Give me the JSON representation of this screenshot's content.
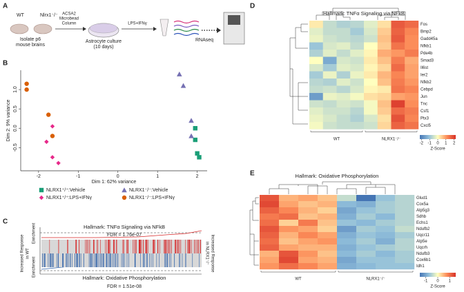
{
  "panel_labels": [
    "A",
    "B",
    "C",
    "D",
    "E"
  ],
  "schematic": {
    "wt": "WT",
    "ko": "Nlrx1⁻/⁻",
    "isolate": [
      "Isolate p6",
      "mouse brains"
    ],
    "column": [
      "ACSA2",
      "Microbead",
      "Column"
    ],
    "culture": [
      "Astrocyte culture",
      "(10 days)"
    ],
    "treatment": "LPS+IFNγ",
    "rnaseq": "RNAseq"
  },
  "scatter": {
    "type": "scatter",
    "xlabel": "Dim 1: 62% variance",
    "ylabel": "Dim 2: 9% variance",
    "xlim": [
      -2.45,
      2.25
    ],
    "ylim": [
      -1.1,
      1.5
    ],
    "xticks": [
      -2,
      -1,
      0,
      1,
      2
    ],
    "yticks": [
      -0.5,
      {
        "value": 0,
        "label": "0.0"
      },
      0.5,
      {
        "value": 1,
        "label": "1.0"
      }
    ],
    "series": [
      {
        "name": "NLRX1⁺/⁺:Vehicle",
        "color": "#1a9e77",
        "marker": "square",
        "x": [
          1.95,
          1.95,
          2.0,
          2.05
        ],
        "y": [
          0.0,
          -0.3,
          -0.65,
          -0.75
        ]
      },
      {
        "name": "NLRX1⁻/⁻:Vehicle",
        "color": "#7570b3",
        "marker": "triangle",
        "x": [
          1.55,
          1.65,
          1.85,
          1.85
        ],
        "y": [
          1.4,
          1.1,
          0.2,
          -0.2
        ]
      },
      {
        "name": "NLRX1⁺/⁺:LPS+IFNγ",
        "color": "#e7298a",
        "marker": "diamond",
        "x": [
          -1.65,
          -1.8,
          -1.65,
          -1.5
        ],
        "y": [
          0.05,
          -0.35,
          -0.75,
          -0.9
        ]
      },
      {
        "name": "NLRX1⁻/⁻:LPS+IFNγ",
        "color": "#d95f02",
        "marker": "circle",
        "x": [
          -2.3,
          -2.3,
          -1.75,
          -1.65
        ],
        "y": [
          1.15,
          1.0,
          0.35,
          -0.2
        ]
      }
    ]
  },
  "gsea": {
    "top_title": "Hallmark: TNFα Signaling via NFkB",
    "top_fdr": "FDR = 1.76e-07",
    "bottom_title": "Hallmark: Oxidative Phosphorylation",
    "bottom_fdr": "FDR = 1.51e-08",
    "enrichment": "Enrichment",
    "left": [
      "Increased Response",
      "in WT"
    ],
    "right": [
      "Increased Response",
      "in NLRX1⁻/⁻"
    ]
  },
  "heatmaps": [
    {
      "type": "heatmap",
      "title": "Hallmark: TNFα Signaling via NFkB",
      "rows": [
        "Fos",
        "Bmp2",
        "Gadd45a",
        "Nfkb1",
        "Pde4b",
        "Smad3",
        "Il6st",
        "Ier2",
        "Nfkb2",
        "Cebpd",
        "Jun",
        "Tnc",
        "Csf1",
        "Ptx3",
        "Cxcl5"
      ],
      "groups": [
        "WT",
        "NLRX1⁻/⁻"
      ],
      "values": [
        [
          0.2,
          -0.6,
          -0.8,
          -0.7,
          -0.3,
          0.3,
          1.7,
          1.5
        ],
        [
          -0.3,
          -0.6,
          -0.6,
          -0.9,
          -0.4,
          0.5,
          1.6,
          1.2
        ],
        [
          -0.2,
          -0.5,
          -0.6,
          -0.7,
          -0.5,
          0.6,
          1.7,
          1.1
        ],
        [
          -1.0,
          -0.4,
          -0.3,
          -0.6,
          0.0,
          0.5,
          1.4,
          1.1
        ],
        [
          -0.8,
          -0.3,
          -0.6,
          -0.3,
          0.1,
          0.8,
          1.0,
          1.3
        ],
        [
          0.0,
          -1.4,
          -0.4,
          -0.5,
          0.2,
          0.6,
          1.3,
          0.8
        ],
        [
          -0.4,
          -0.9,
          -0.3,
          -0.4,
          0.1,
          0.4,
          1.5,
          0.9
        ],
        [
          -0.9,
          -0.2,
          -0.8,
          -0.2,
          0.2,
          0.7,
          1.2,
          0.9
        ],
        [
          -0.7,
          -0.8,
          -0.3,
          -0.5,
          0.0,
          0.6,
          1.3,
          1.0
        ],
        [
          -0.6,
          -0.5,
          -0.7,
          -0.4,
          0.1,
          0.2,
          1.4,
          1.2
        ],
        [
          -1.6,
          -0.2,
          -0.3,
          -0.1,
          0.3,
          0.4,
          0.9,
          1.0
        ],
        [
          -0.5,
          -0.6,
          -0.4,
          -0.5,
          -0.1,
          0.6,
          2.0,
          1.1
        ],
        [
          -0.3,
          -0.5,
          -0.5,
          -0.7,
          -0.1,
          0.5,
          1.5,
          1.3
        ],
        [
          -0.2,
          -0.4,
          -0.6,
          -0.8,
          -0.4,
          0.3,
          1.8,
          1.2
        ],
        [
          -0.1,
          -0.5,
          -0.6,
          -0.6,
          -0.5,
          0.4,
          1.6,
          1.4
        ]
      ],
      "clim": [
        -2.2,
        2.2
      ],
      "cbar_ticks": [
        -2,
        -1,
        0,
        1,
        2
      ],
      "cbar_label": "Z-Score"
    },
    {
      "type": "heatmap",
      "title": "Hallmark: Oxidative Phosphorylation",
      "rows": [
        "Glud1",
        "Cox5a",
        "Atp5g3",
        "Sdhb",
        "Echs1",
        "Ndufb2",
        "Uqcr11",
        "Atp5e",
        "Uqcrh",
        "Ndufb3",
        "Cox6b1",
        "Idh1"
      ],
      "groups": [
        "WT",
        "NLRX1⁻/⁻"
      ],
      "values": [
        [
          1.2,
          0.5,
          0.6,
          0.4,
          -0.4,
          -1.5,
          -0.7,
          -0.5
        ],
        [
          1.3,
          0.6,
          0.4,
          0.5,
          -0.8,
          -0.9,
          -0.6,
          -0.5
        ],
        [
          1.1,
          0.8,
          0.5,
          0.3,
          -1.0,
          -0.7,
          -0.6,
          -0.5
        ],
        [
          0.9,
          1.0,
          0.4,
          0.5,
          -0.9,
          -0.6,
          -0.8,
          -0.5
        ],
        [
          1.0,
          0.3,
          0.9,
          0.4,
          -0.7,
          -0.8,
          -0.6,
          -0.5
        ],
        [
          1.2,
          0.7,
          0.6,
          0.3,
          -1.1,
          -0.6,
          -0.7,
          -0.4
        ],
        [
          1.1,
          0.5,
          0.8,
          0.6,
          -0.9,
          -0.7,
          -0.8,
          -0.6
        ],
        [
          1.0,
          0.4,
          0.6,
          0.7,
          -0.8,
          -0.6,
          -0.9,
          -0.5
        ],
        [
          1.1,
          0.6,
          0.5,
          0.5,
          -0.9,
          -0.7,
          -0.6,
          -0.5
        ],
        [
          0.5,
          1.2,
          0.7,
          0.4,
          -0.8,
          -0.6,
          -0.8,
          -0.6
        ],
        [
          0.6,
          1.3,
          0.6,
          0.5,
          -1.0,
          -0.7,
          -0.7,
          -0.6
        ],
        [
          0.7,
          1.0,
          0.8,
          0.6,
          -0.9,
          -0.8,
          -0.7,
          -0.7
        ]
      ],
      "clim": [
        -1.5,
        1.5
      ],
      "cbar_ticks": [
        -1,
        0,
        1
      ],
      "cbar_label": "Z-Score"
    }
  ]
}
